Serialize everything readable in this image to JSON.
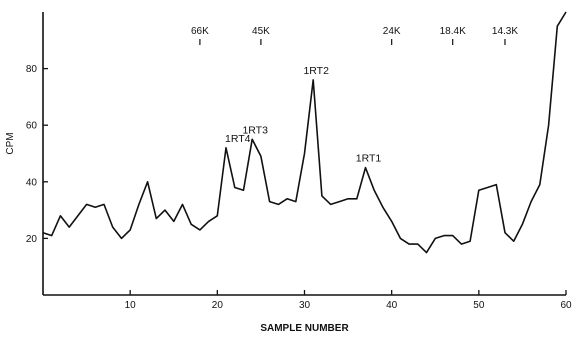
{
  "chart_data": {
    "type": "line",
    "xlabel": "SAMPLE NUMBER",
    "ylabel": "CPM",
    "xlim": [
      0,
      60
    ],
    "ylim": [
      0,
      100
    ],
    "x_ticks": [
      10,
      20,
      30,
      40,
      50,
      60
    ],
    "y_ticks": [
      20,
      40,
      60,
      80
    ],
    "grid": false,
    "line_color": "#111111",
    "series": [
      {
        "x": [
          0,
          1,
          2,
          3,
          4,
          5,
          6,
          7,
          8,
          9,
          10,
          11,
          12,
          13,
          14,
          15,
          16,
          17,
          18,
          19,
          20,
          21,
          22,
          23,
          24,
          25,
          26,
          27,
          28,
          29,
          30,
          31,
          32,
          33,
          34,
          35,
          36,
          37,
          38,
          39,
          40,
          41,
          42,
          43,
          44,
          45,
          46,
          47,
          48,
          49,
          50,
          51,
          52,
          53,
          54,
          55,
          56,
          57,
          58,
          59,
          60
        ],
        "y": [
          22,
          21,
          28,
          24,
          28,
          32,
          31,
          32,
          24,
          20,
          23,
          32,
          40,
          27,
          30,
          26,
          32,
          25,
          23,
          26,
          28,
          52,
          38,
          37,
          55,
          49,
          33,
          32,
          34,
          33,
          50,
          76,
          35,
          32,
          33,
          34,
          34,
          45,
          37,
          31,
          26,
          20,
          18,
          18,
          15,
          20,
          21,
          21,
          18,
          19,
          37,
          38,
          39,
          22,
          19,
          25,
          33,
          39,
          60,
          95,
          100
        ]
      }
    ],
    "peak_labels": [
      {
        "text": "1RT4",
        "x": 22,
        "y": 52
      },
      {
        "text": "1RT3",
        "x": 24,
        "y": 55
      },
      {
        "text": "1RT2",
        "x": 31,
        "y": 76
      },
      {
        "text": "1RT1",
        "x": 37,
        "y": 45
      }
    ],
    "mw_markers": [
      {
        "text": "66K",
        "x": 18
      },
      {
        "text": "45K",
        "x": 25
      },
      {
        "text": "24K",
        "x": 40
      },
      {
        "text": "18.4K",
        "x": 47
      },
      {
        "text": "14.3K",
        "x": 53
      }
    ]
  }
}
